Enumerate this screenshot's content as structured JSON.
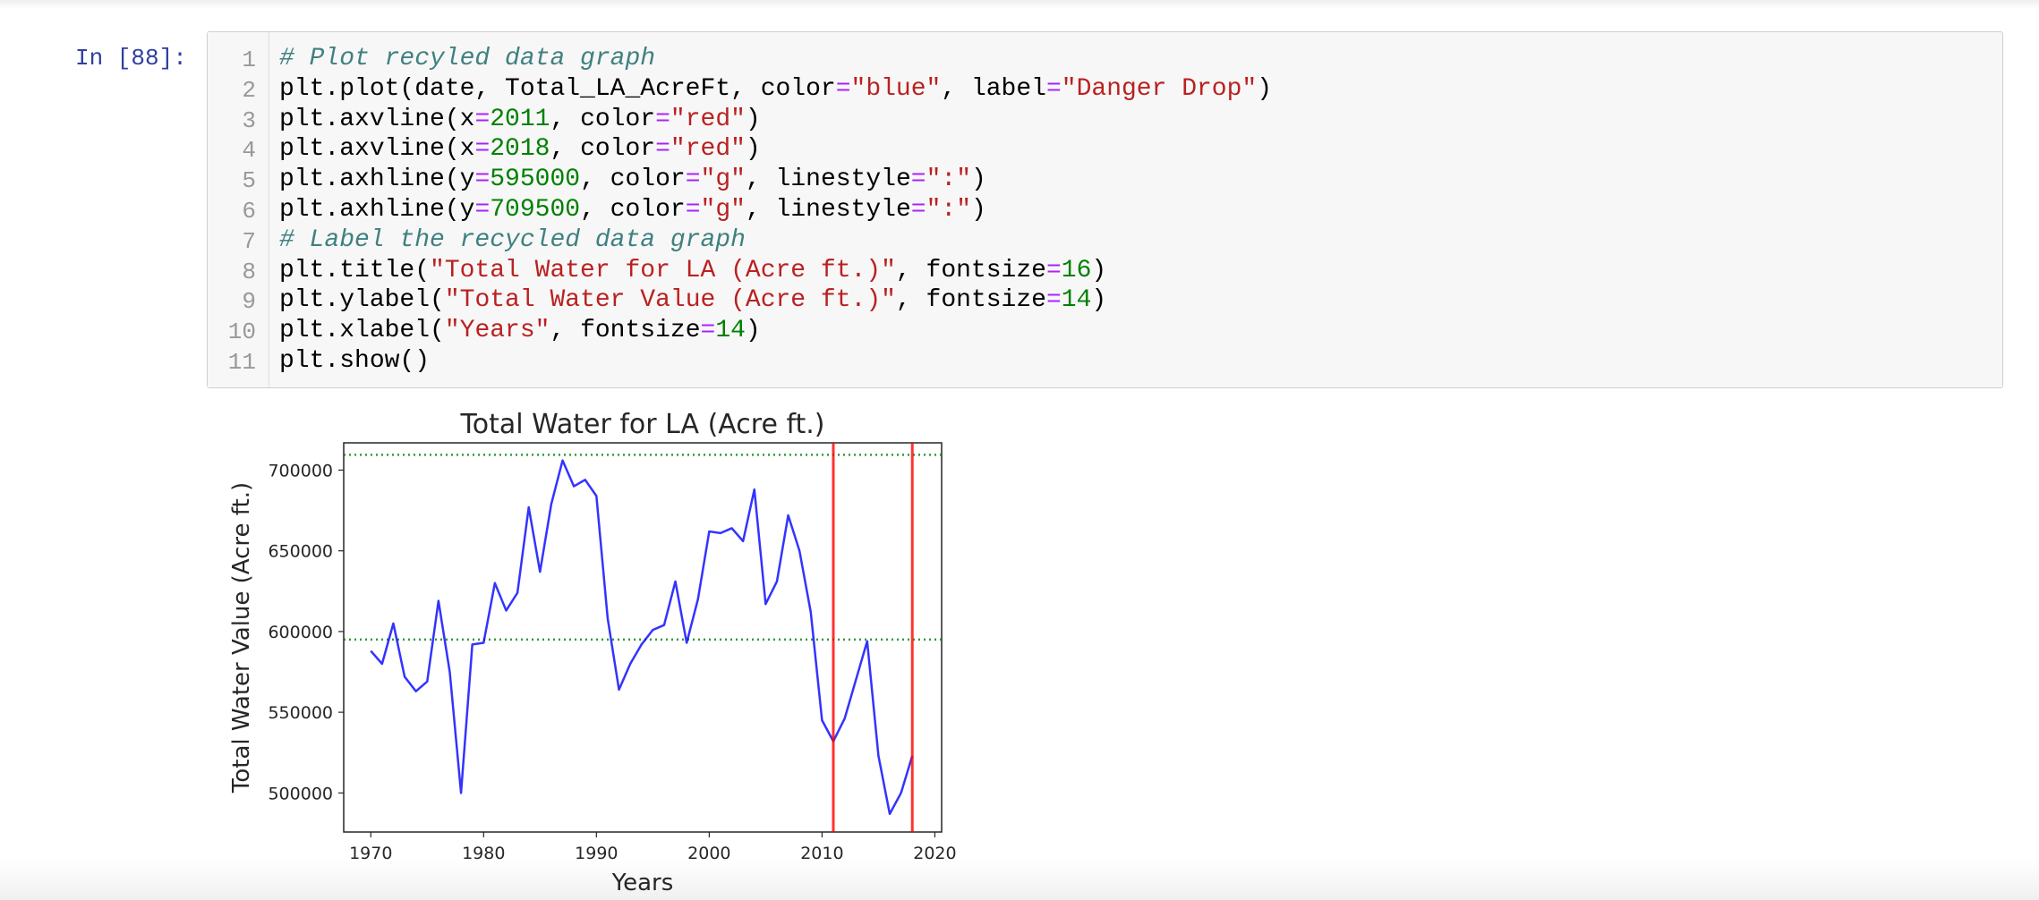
{
  "prompt": "In [88]:",
  "code_cell": {
    "line_numbers": [
      1,
      2,
      3,
      4,
      5,
      6,
      7,
      8,
      9,
      10,
      11
    ],
    "lines": [
      [
        "# Plot recyled data graph"
      ],
      [
        "plt.plot(date, Total_LA_AcreFt, color",
        "=",
        "\"blue\"",
        ", label",
        "=",
        "\"Danger Drop\"",
        ")"
      ],
      [
        "plt.axvline(x",
        "=",
        "2011",
        ", color",
        "=",
        "\"red\"",
        ")"
      ],
      [
        "plt.axvline(x",
        "=",
        "2018",
        ", color",
        "=",
        "\"red\"",
        ")"
      ],
      [
        "plt.axhline(y",
        "=",
        "595000",
        ", color",
        "=",
        "\"g\"",
        ", linestyle",
        "=",
        "\":\"",
        ")"
      ],
      [
        "plt.axhline(y",
        "=",
        "709500",
        ", color",
        "=",
        "\"g\"",
        ", linestyle",
        "=",
        "\":\"",
        ")"
      ],
      [
        "# Label the recycled data graph"
      ],
      [
        "plt.title(",
        "\"Total Water for LA (Acre ft.)\"",
        ", fontsize",
        "=",
        "16",
        ")"
      ],
      [
        "plt.ylabel(",
        "\"Total Water Value (Acre ft.)\"",
        ", fontsize",
        "=",
        "14",
        ")"
      ],
      [
        "plt.xlabel(",
        "\"Years\"",
        ", fontsize",
        "=",
        "14",
        ")"
      ],
      [
        "plt.show()"
      ]
    ]
  },
  "chart_data": {
    "type": "line",
    "title": "Total Water for LA (Acre ft.)",
    "xlabel": "Years",
    "ylabel": "Total Water Value (Acre ft.)",
    "x": [
      1970,
      1971,
      1972,
      1973,
      1974,
      1975,
      1976,
      1977,
      1978,
      1979,
      1980,
      1981,
      1982,
      1983,
      1984,
      1985,
      1986,
      1987,
      1988,
      1989,
      1990,
      1991,
      1992,
      1993,
      1994,
      1995,
      1996,
      1997,
      1998,
      1999,
      2000,
      2001,
      2002,
      2003,
      2004,
      2005,
      2006,
      2007,
      2008,
      2009,
      2010,
      2011,
      2012,
      2013,
      2014,
      2015,
      2016,
      2017,
      2018
    ],
    "series": [
      {
        "name": "Danger Drop",
        "color": "#0000ff",
        "values": [
          588000,
          580000,
          605000,
          572000,
          563000,
          569000,
          619000,
          575000,
          500000,
          592000,
          593000,
          630000,
          613000,
          624000,
          677000,
          637000,
          679000,
          706000,
          690000,
          694000,
          684000,
          608000,
          564000,
          580000,
          592000,
          601000,
          604000,
          631000,
          593000,
          620000,
          662000,
          661000,
          664000,
          656000,
          688000,
          617000,
          631000,
          672000,
          650000,
          612000,
          545000,
          532000,
          546000,
          570000,
          594000,
          523000,
          487000,
          500000,
          523000
        ]
      }
    ],
    "vlines": [
      {
        "x": 2011,
        "color": "#ff0000"
      },
      {
        "x": 2018,
        "color": "#ff0000"
      }
    ],
    "hlines": [
      {
        "y": 595000,
        "color": "#008000",
        "linestyle": "dotted"
      },
      {
        "y": 709500,
        "color": "#008000",
        "linestyle": "dotted"
      }
    ],
    "xlim": [
      1967.6,
      2020.6
    ],
    "ylim": [
      475800,
      716900
    ],
    "xticks": [
      1970,
      1980,
      1990,
      2000,
      2010,
      2020
    ],
    "yticks": [
      500000,
      550000,
      600000,
      650000,
      700000
    ]
  }
}
